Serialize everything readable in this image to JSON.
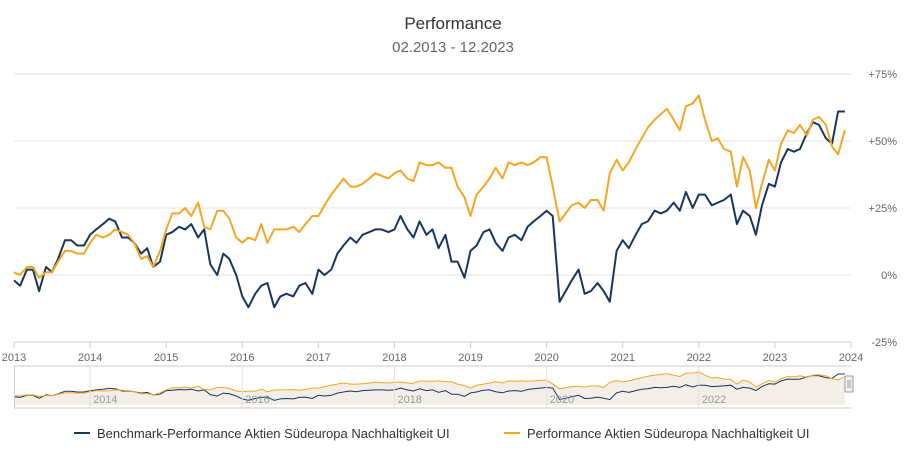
{
  "chart_data": {
    "type": "line",
    "title": "Performance",
    "subtitle": "02.2013 - 12.2023",
    "y_ticks": [
      "+75%",
      "+50%",
      "+25%",
      "0%",
      "-25%"
    ],
    "y_tick_values": [
      75,
      50,
      25,
      0,
      -25
    ],
    "ylim": [
      -25,
      75
    ],
    "xlim": [
      2013.0,
      2024.0
    ],
    "x_ticks": [
      "2013",
      "2014",
      "2015",
      "2016",
      "2017",
      "2018",
      "2019",
      "2020",
      "2021",
      "2022",
      "2023",
      "2024"
    ],
    "navigator_ticks": [
      "2014",
      "2016",
      "2018",
      "2020",
      "2022"
    ],
    "grid": "horizontal",
    "legend_position": "bottom",
    "series": [
      {
        "name": "Benchmark-Performance Aktien Südeuropa Nachhaltigkeit UI",
        "color": "#17365d",
        "x": [
          2013.0,
          2013.08,
          2013.17,
          2013.25,
          2013.33,
          2013.42,
          2013.5,
          2013.58,
          2013.67,
          2013.75,
          2013.83,
          2013.92,
          2014.0,
          2014.08,
          2014.17,
          2014.25,
          2014.33,
          2014.42,
          2014.5,
          2014.58,
          2014.67,
          2014.75,
          2014.83,
          2014.92,
          2015.0,
          2015.08,
          2015.17,
          2015.25,
          2015.33,
          2015.42,
          2015.5,
          2015.58,
          2015.67,
          2015.75,
          2015.83,
          2015.92,
          2016.0,
          2016.08,
          2016.17,
          2016.25,
          2016.33,
          2016.42,
          2016.5,
          2016.58,
          2016.67,
          2016.75,
          2016.83,
          2016.92,
          2017.0,
          2017.08,
          2017.17,
          2017.25,
          2017.33,
          2017.42,
          2017.5,
          2017.58,
          2017.67,
          2017.75,
          2017.83,
          2017.92,
          2018.0,
          2018.08,
          2018.17,
          2018.25,
          2018.33,
          2018.42,
          2018.5,
          2018.58,
          2018.67,
          2018.75,
          2018.83,
          2018.92,
          2019.0,
          2019.08,
          2019.17,
          2019.25,
          2019.33,
          2019.42,
          2019.5,
          2019.58,
          2019.67,
          2019.75,
          2019.83,
          2019.92,
          2020.0,
          2020.08,
          2020.17,
          2020.25,
          2020.33,
          2020.42,
          2020.5,
          2020.58,
          2020.67,
          2020.75,
          2020.83,
          2020.92,
          2021.0,
          2021.08,
          2021.17,
          2021.25,
          2021.33,
          2021.42,
          2021.5,
          2021.58,
          2021.67,
          2021.75,
          2021.83,
          2021.92,
          2022.0,
          2022.08,
          2022.17,
          2022.25,
          2022.33,
          2022.42,
          2022.5,
          2022.58,
          2022.67,
          2022.75,
          2022.83,
          2022.92,
          2023.0,
          2023.08,
          2023.17,
          2023.25,
          2023.33,
          2023.42,
          2023.5,
          2023.58,
          2023.67,
          2023.75,
          2023.83,
          2023.92
        ],
        "y": [
          -2,
          -4,
          2,
          2,
          -6,
          3,
          1,
          6,
          13,
          13,
          11,
          11,
          15,
          17,
          19,
          21,
          20,
          14,
          14,
          12,
          8,
          10,
          3,
          5,
          15,
          16,
          18,
          17,
          19,
          14,
          17,
          4,
          0,
          8,
          6,
          0,
          -8,
          -12,
          -7,
          -4,
          -3,
          -12,
          -8,
          -7,
          -8,
          -4,
          -3,
          -7,
          2,
          0,
          2,
          8,
          11,
          14,
          12,
          15,
          16,
          17,
          17,
          16,
          17,
          22,
          17,
          14,
          20,
          15,
          17,
          10,
          15,
          5,
          5,
          -1,
          9,
          11,
          16,
          17,
          12,
          9,
          14,
          15,
          13,
          18,
          20,
          22,
          24,
          22,
          -10,
          -6,
          -2,
          2,
          -7,
          -6,
          -3,
          -6,
          -10,
          9,
          13,
          10,
          15,
          19,
          20,
          24,
          23,
          24,
          27,
          24,
          31,
          25,
          30,
          30,
          26,
          27,
          28,
          30,
          19,
          24,
          22,
          15,
          26,
          34,
          33,
          42,
          47,
          46,
          47,
          53,
          57,
          56,
          51,
          49,
          61,
          61
        ]
      },
      {
        "name": "Performance Aktien Südeuropa Nachhaltigkeit UI",
        "color": "#f5a623",
        "x": [
          2013.0,
          2013.08,
          2013.17,
          2013.25,
          2013.33,
          2013.42,
          2013.5,
          2013.58,
          2013.67,
          2013.75,
          2013.83,
          2013.92,
          2014.0,
          2014.08,
          2014.17,
          2014.25,
          2014.33,
          2014.42,
          2014.5,
          2014.58,
          2014.67,
          2014.75,
          2014.83,
          2014.92,
          2015.0,
          2015.08,
          2015.17,
          2015.25,
          2015.33,
          2015.42,
          2015.5,
          2015.58,
          2015.67,
          2015.75,
          2015.83,
          2015.92,
          2016.0,
          2016.08,
          2016.17,
          2016.25,
          2016.33,
          2016.42,
          2016.5,
          2016.58,
          2016.67,
          2016.75,
          2016.83,
          2016.92,
          2017.0,
          2017.08,
          2017.17,
          2017.25,
          2017.33,
          2017.42,
          2017.5,
          2017.58,
          2017.67,
          2017.75,
          2017.83,
          2017.92,
          2018.0,
          2018.08,
          2018.17,
          2018.25,
          2018.33,
          2018.42,
          2018.5,
          2018.58,
          2018.67,
          2018.75,
          2018.83,
          2018.92,
          2019.0,
          2019.08,
          2019.17,
          2019.25,
          2019.33,
          2019.42,
          2019.5,
          2019.58,
          2019.67,
          2019.75,
          2019.83,
          2019.92,
          2020.0,
          2020.08,
          2020.17,
          2020.25,
          2020.33,
          2020.42,
          2020.5,
          2020.58,
          2020.67,
          2020.75,
          2020.83,
          2020.92,
          2021.0,
          2021.08,
          2021.17,
          2021.25,
          2021.33,
          2021.42,
          2021.5,
          2021.58,
          2021.67,
          2021.75,
          2021.83,
          2021.92,
          2022.0,
          2022.08,
          2022.17,
          2022.25,
          2022.33,
          2022.42,
          2022.5,
          2022.58,
          2022.67,
          2022.75,
          2022.83,
          2022.92,
          2023.0,
          2023.08,
          2023.17,
          2023.25,
          2023.33,
          2023.42,
          2023.5,
          2023.58,
          2023.67,
          2023.75,
          2023.83,
          2023.92
        ],
        "y": [
          1,
          0,
          3,
          3,
          -1,
          1,
          1,
          5,
          9,
          9,
          8,
          8,
          12,
          15,
          14,
          15,
          17,
          16,
          15,
          12,
          6,
          7,
          3,
          9,
          17,
          23,
          23,
          25,
          22,
          27,
          18,
          17,
          24,
          24,
          21,
          14,
          12,
          14,
          13,
          19,
          12,
          17,
          17,
          17,
          18,
          16,
          19,
          22,
          22,
          26,
          30,
          33,
          36,
          33,
          33,
          34,
          36,
          38,
          37,
          36,
          38,
          39,
          36,
          35,
          42,
          41,
          41,
          42,
          40,
          40,
          33,
          29,
          22,
          30,
          33,
          36,
          40,
          36,
          42,
          41,
          42,
          41,
          42,
          44,
          44,
          33,
          20,
          23,
          26,
          27,
          25,
          28,
          28,
          24,
          38,
          43,
          39,
          42,
          47,
          51,
          55,
          58,
          60,
          62,
          58,
          54,
          63,
          64,
          67,
          58,
          50,
          51,
          47,
          46,
          33,
          44,
          39,
          25,
          34,
          43,
          39,
          49,
          54,
          53,
          56,
          52,
          58,
          59,
          56,
          48,
          45,
          54
        ]
      }
    ]
  }
}
